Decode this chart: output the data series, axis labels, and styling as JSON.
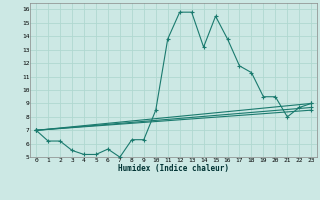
{
  "xlabel": "Humidex (Indice chaleur)",
  "bg_color": "#cce8e4",
  "grid_color": "#b0d8d0",
  "line_color": "#1a7a6e",
  "xlim": [
    -0.5,
    23.5
  ],
  "ylim": [
    5,
    16.5
  ],
  "xticks": [
    0,
    1,
    2,
    3,
    4,
    5,
    6,
    7,
    8,
    9,
    10,
    11,
    12,
    13,
    14,
    15,
    16,
    17,
    18,
    19,
    20,
    21,
    22,
    23
  ],
  "yticks": [
    5,
    6,
    7,
    8,
    9,
    10,
    11,
    12,
    13,
    14,
    15,
    16
  ],
  "main_x": [
    0,
    1,
    2,
    3,
    4,
    5,
    6,
    7,
    8,
    9,
    10,
    11,
    12,
    13,
    14,
    15,
    16,
    17,
    18,
    19,
    20,
    21,
    22,
    23
  ],
  "main_y": [
    7.0,
    6.2,
    6.2,
    5.5,
    5.2,
    5.2,
    5.6,
    5.0,
    6.3,
    6.3,
    8.5,
    13.8,
    15.8,
    15.8,
    13.2,
    15.5,
    13.8,
    11.8,
    11.3,
    9.5,
    9.5,
    8.0,
    8.7,
    9.0
  ],
  "line1_x": [
    0,
    23
  ],
  "line1_y": [
    7.0,
    9.0
  ],
  "line2_x": [
    0,
    23
  ],
  "line2_y": [
    7.0,
    8.7
  ],
  "line3_x": [
    0,
    23
  ],
  "line3_y": [
    7.0,
    8.5
  ]
}
